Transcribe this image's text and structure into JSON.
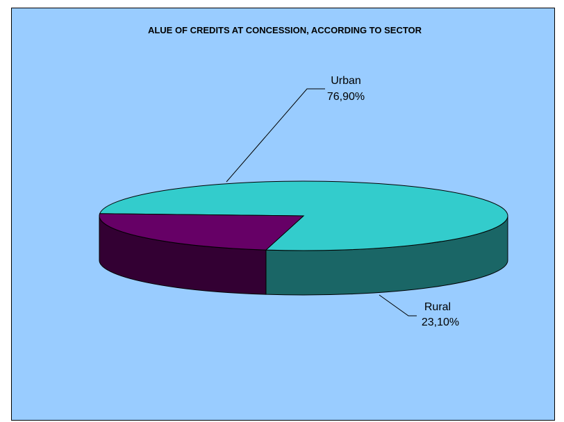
{
  "chart_data": {
    "type": "pie",
    "title": "ALUE OF CREDITS AT CONCESSION, ACCORDING TO SECTOR",
    "three_d": true,
    "slices": [
      {
        "label": "Urban",
        "value": 76.9,
        "value_label": "76,90%",
        "color": "#33cccc",
        "side_color": "#1a6666"
      },
      {
        "label": "Rural",
        "value": 23.1,
        "value_label": "23,10%",
        "color": "#660066",
        "side_color": "#330033"
      }
    ],
    "background_color": "#99ccff"
  }
}
